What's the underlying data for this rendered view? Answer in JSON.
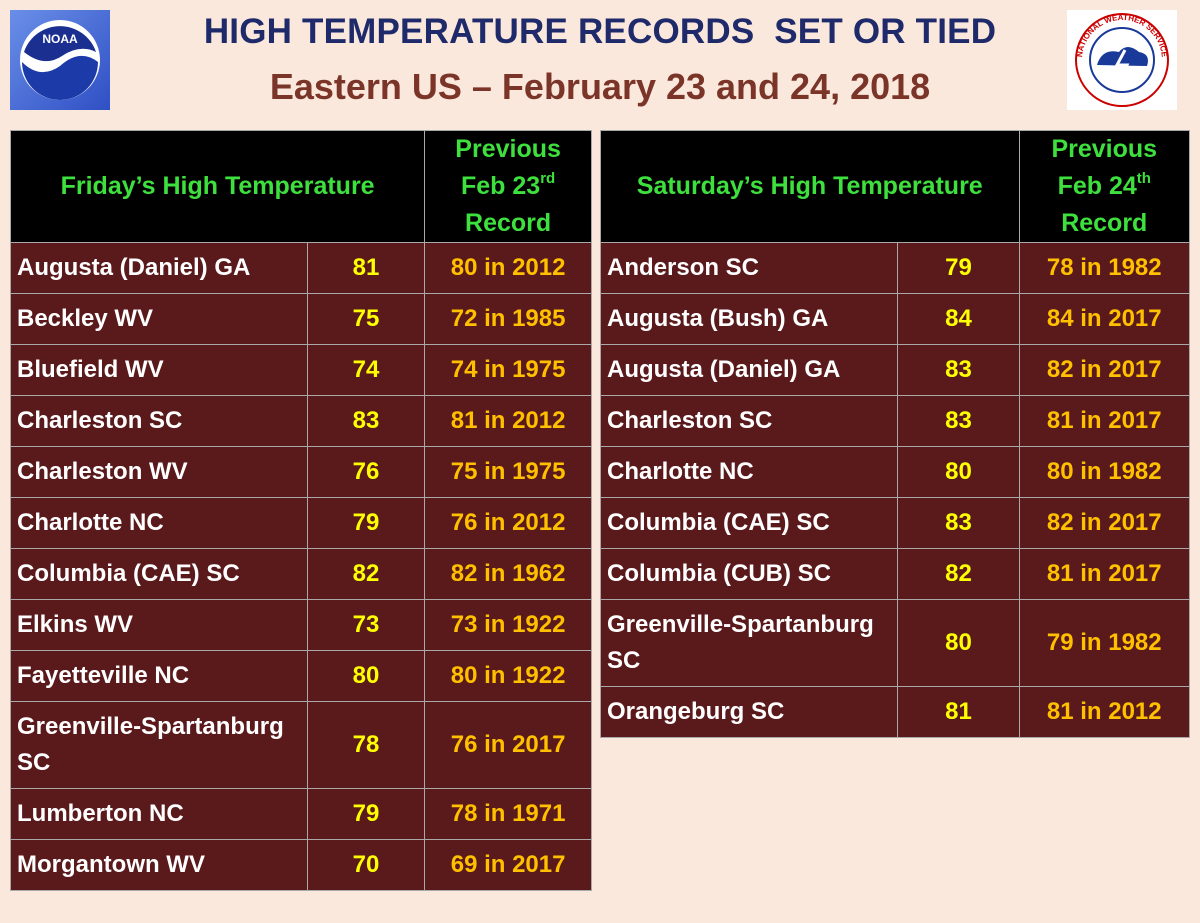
{
  "header": {
    "title": "HIGH TEMPERATURE RECORDS  SET OR TIED",
    "subtitle": "Eastern US – February 23 and 24, 2018"
  },
  "logos": {
    "noaa": "NOAA",
    "nws": "NATIONAL WEATHER SERVICE"
  },
  "tables": [
    {
      "heading": "Friday’s High Temperature",
      "record_heading": [
        "Previous",
        "Feb 23",
        "rd",
        "Record"
      ],
      "rows": [
        [
          "Augusta (Daniel) GA",
          "81",
          "80 in 2012"
        ],
        [
          "Beckley WV",
          "75",
          "72 in 1985"
        ],
        [
          "Bluefield WV",
          "74",
          "74 in 1975"
        ],
        [
          "Charleston SC",
          "83",
          "81 in 2012"
        ],
        [
          "Charleston WV",
          "76",
          "75 in 1975"
        ],
        [
          "Charlotte NC",
          "79",
          "76 in 2012"
        ],
        [
          "Columbia (CAE) SC",
          "82",
          "82 in 1962"
        ],
        [
          "Elkins WV",
          "73",
          "73 in 1922"
        ],
        [
          "Fayetteville NC",
          "80",
          "80 in 1922"
        ],
        [
          "Greenville-Spartanburg SC",
          "78",
          "76 in 2017"
        ],
        [
          "Lumberton NC",
          "79",
          "78 in 1971"
        ],
        [
          "Morgantown WV",
          "70",
          "69 in 2017"
        ]
      ]
    },
    {
      "heading": "Saturday’s High Temperature",
      "record_heading": [
        "Previous",
        "Feb 24",
        "th",
        "Record"
      ],
      "rows": [
        [
          "Anderson SC",
          "79",
          "78 in 1982"
        ],
        [
          "Augusta (Bush) GA",
          "84",
          "84 in 2017"
        ],
        [
          "Augusta (Daniel) GA",
          "83",
          "82 in 2017"
        ],
        [
          "Charleston SC",
          "83",
          "81 in 2017"
        ],
        [
          "Charlotte NC",
          "80",
          "80 in 1982"
        ],
        [
          "Columbia (CAE) SC",
          "83",
          "82 in 2017"
        ],
        [
          "Columbia (CUB) SC",
          "82",
          "81 in 2017"
        ],
        [
          "Greenville-Spartanburg SC",
          "80",
          "79 in 1982"
        ],
        [
          "Orangeburg SC",
          "81",
          "81 in 2012"
        ]
      ]
    }
  ]
}
